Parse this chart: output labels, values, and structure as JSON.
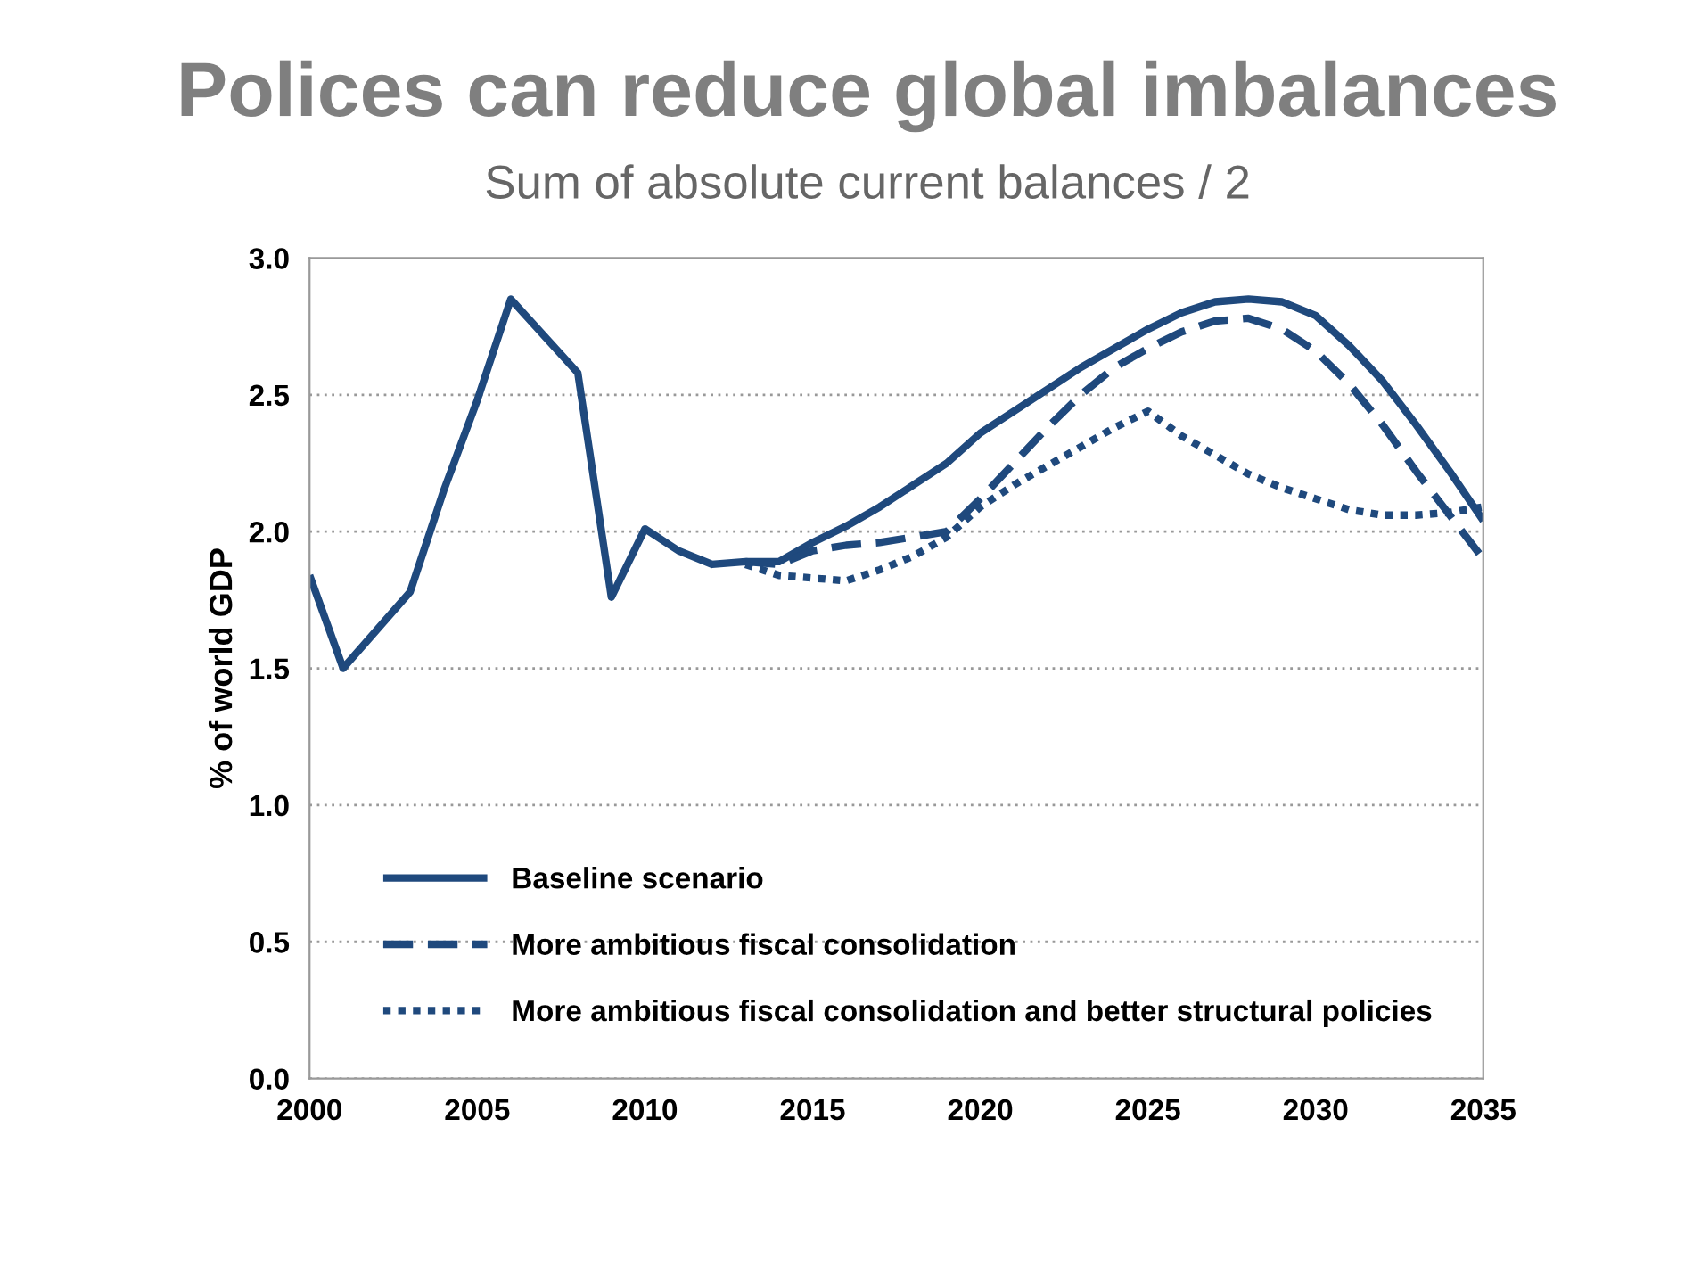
{
  "chart_data": {
    "type": "line",
    "title": "Polices can reduce global imbalances",
    "subtitle": "Sum of absolute current balances / 2",
    "ylabel": "% of world GDP",
    "xlim": [
      2000,
      2035
    ],
    "xticks": [
      2000,
      2005,
      2010,
      2015,
      2020,
      2025,
      2030,
      2035
    ],
    "ylim": [
      0,
      3
    ],
    "yticks": [
      {
        "value": 0,
        "label": "0.0"
      },
      {
        "value": 0.5,
        "label": "0.5"
      },
      {
        "value": 1,
        "label": "1.0"
      },
      {
        "value": 1.5,
        "label": "1.5"
      },
      {
        "value": 2,
        "label": "2.0"
      },
      {
        "value": 2.5,
        "label": "2.5"
      },
      {
        "value": 3,
        "label": "3.0"
      }
    ],
    "grid": "y",
    "legend": "bottom left",
    "marker": "none",
    "series": [
      {
        "name": "Baseline scenario",
        "color": "#1f497d",
        "line_style": "solid",
        "x": [
          2000,
          2001,
          2003,
          2004,
          2005,
          2006,
          2008,
          2009,
          2010,
          2011,
          2012,
          2013,
          2014,
          2015,
          2016,
          2017,
          2018,
          2019,
          2020,
          2021,
          2022,
          2023,
          2024,
          2025,
          2026,
          2027,
          2028,
          2029,
          2030,
          2031,
          2032,
          2033,
          2034,
          2035
        ],
        "values": [
          1.84,
          1.5,
          1.78,
          2.15,
          2.48,
          2.85,
          2.58,
          1.76,
          2.01,
          1.93,
          1.88,
          1.89,
          1.89,
          1.96,
          2.02,
          2.09,
          2.17,
          2.25,
          2.36,
          2.44,
          2.52,
          2.6,
          2.67,
          2.74,
          2.8,
          2.84,
          2.85,
          2.84,
          2.79,
          2.68,
          2.55,
          2.39,
          2.22,
          2.04
        ]
      },
      {
        "name": "More ambitious fiscal consolidation",
        "color": "#1f497d",
        "line_style": "dashed",
        "x": [
          2013,
          2014,
          2015,
          2016,
          2017,
          2018,
          2019,
          2020,
          2021,
          2022,
          2023,
          2024,
          2025,
          2026,
          2027,
          2028,
          2029,
          2030,
          2031,
          2032,
          2033,
          2034,
          2035
        ],
        "values": [
          1.89,
          1.88,
          1.93,
          1.95,
          1.96,
          1.98,
          2.0,
          2.12,
          2.25,
          2.38,
          2.5,
          2.6,
          2.67,
          2.73,
          2.77,
          2.78,
          2.74,
          2.66,
          2.54,
          2.39,
          2.22,
          2.06,
          1.9
        ]
      },
      {
        "name": "More ambitious fiscal consolidation and better structural policies",
        "color": "#1f497d",
        "line_style": "dotted",
        "x": [
          2013,
          2014,
          2015,
          2016,
          2017,
          2018,
          2019,
          2020,
          2021,
          2022,
          2023,
          2024,
          2025,
          2026,
          2027,
          2028,
          2029,
          2030,
          2031,
          2032,
          2033,
          2034,
          2035
        ],
        "values": [
          1.88,
          1.84,
          1.83,
          1.82,
          1.86,
          1.91,
          1.98,
          2.09,
          2.17,
          2.24,
          2.31,
          2.38,
          2.44,
          2.35,
          2.28,
          2.21,
          2.16,
          2.12,
          2.08,
          2.06,
          2.06,
          2.07,
          2.09
        ]
      }
    ]
  }
}
